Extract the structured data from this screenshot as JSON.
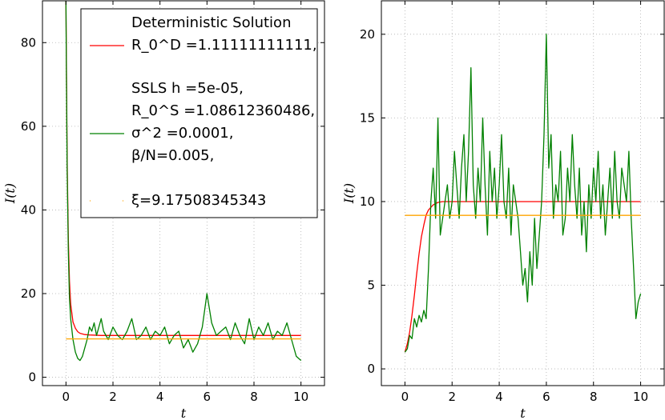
{
  "chart_data": [
    {
      "type": "line",
      "xlabel": "t",
      "ylabel": "I(t)",
      "xlim": [
        -1,
        11
      ],
      "ylim": [
        -2,
        90
      ],
      "xticks": [
        0,
        2,
        4,
        6,
        8,
        10
      ],
      "yticks": [
        0,
        20,
        40,
        60,
        80
      ],
      "grid": true,
      "legend_placement": "top-right",
      "legend": [
        {
          "series": "deterministic",
          "lines": [
            "Deterministic Solution",
            "R_0^D =1.11111111111,"
          ]
        },
        {
          "series": "ssls",
          "lines": [
            "SSLS h =5e-05,",
            "R_0^S =1.08612360486,",
            "σ^2 =0.0001,",
            "β/N=0.005,"
          ]
        },
        {
          "series": "xi",
          "lines": [
            "ξ=9.17508345343"
          ]
        }
      ],
      "series": [
        {
          "id": "deterministic",
          "color": "#ff0000",
          "x": [
            0,
            0.02,
            0.05,
            0.1,
            0.15,
            0.2,
            0.3,
            0.4,
            0.5,
            0.6,
            0.8,
            1.0,
            1.5,
            2,
            4,
            6,
            8,
            10
          ],
          "y": [
            90,
            75,
            52,
            33,
            23,
            17.5,
            13.2,
            11.7,
            10.9,
            10.5,
            10.2,
            10.1,
            10.0,
            10.0,
            10.0,
            10.0,
            10.0,
            10.0
          ]
        },
        {
          "id": "ssls",
          "color": "#008000",
          "x": [
            0,
            0.02,
            0.05,
            0.1,
            0.15,
            0.2,
            0.3,
            0.4,
            0.5,
            0.6,
            0.7,
            0.8,
            0.9,
            1.0,
            1.1,
            1.2,
            1.3,
            1.4,
            1.5,
            1.6,
            1.8,
            2.0,
            2.2,
            2.4,
            2.6,
            2.8,
            3.0,
            3.2,
            3.4,
            3.6,
            3.8,
            4.0,
            4.2,
            4.4,
            4.6,
            4.8,
            5.0,
            5.2,
            5.4,
            5.6,
            5.8,
            6.0,
            6.2,
            6.4,
            6.6,
            6.8,
            7.0,
            7.2,
            7.4,
            7.6,
            7.8,
            8.0,
            8.2,
            8.4,
            8.6,
            8.8,
            9.0,
            9.2,
            9.4,
            9.6,
            9.8,
            10.0
          ],
          "y": [
            90,
            72,
            50,
            30,
            19,
            14,
            9,
            6,
            4.5,
            4,
            5,
            7,
            9,
            12,
            11,
            13,
            10,
            12,
            14,
            11,
            9,
            12,
            10,
            9,
            11,
            14,
            9,
            10,
            12,
            9,
            11,
            10,
            12,
            8,
            10,
            11,
            7,
            9,
            6,
            8,
            12,
            20,
            13,
            10,
            11,
            12,
            9,
            13,
            10,
            8,
            14,
            9,
            12,
            10,
            13,
            9,
            11,
            10,
            13,
            9,
            5,
            4
          ]
        },
        {
          "id": "xi",
          "color": "#ffa500",
          "x": [
            0,
            10
          ],
          "y": [
            9.175,
            9.175
          ]
        }
      ]
    },
    {
      "type": "line",
      "xlabel": "t",
      "ylabel": "I(t)",
      "xlim": [
        -1,
        11
      ],
      "ylim": [
        -1,
        22
      ],
      "xticks": [
        0,
        2,
        4,
        6,
        8,
        10
      ],
      "yticks": [
        0,
        5,
        10,
        15,
        20
      ],
      "grid": true,
      "series": [
        {
          "id": "deterministic",
          "color": "#ff0000",
          "x": [
            0,
            0.1,
            0.2,
            0.3,
            0.4,
            0.5,
            0.6,
            0.7,
            0.8,
            0.9,
            1.0,
            1.2,
            1.4,
            1.6,
            2,
            4,
            6,
            8,
            10
          ],
          "y": [
            1,
            1.5,
            2.2,
            3.2,
            4.4,
            5.7,
            6.9,
            7.9,
            8.6,
            9.2,
            9.5,
            9.8,
            9.95,
            10.0,
            10.0,
            10.0,
            10.0,
            10.0,
            10.0
          ]
        },
        {
          "id": "ssls",
          "color": "#008000",
          "x": [
            0,
            0.1,
            0.2,
            0.3,
            0.4,
            0.5,
            0.6,
            0.7,
            0.8,
            0.9,
            1.0,
            1.1,
            1.2,
            1.3,
            1.4,
            1.5,
            1.6,
            1.7,
            1.8,
            1.9,
            2.0,
            2.1,
            2.2,
            2.3,
            2.4,
            2.5,
            2.6,
            2.7,
            2.8,
            2.9,
            3.0,
            3.1,
            3.2,
            3.3,
            3.4,
            3.5,
            3.6,
            3.7,
            3.8,
            3.9,
            4.0,
            4.1,
            4.2,
            4.3,
            4.4,
            4.5,
            4.6,
            4.7,
            4.8,
            4.9,
            5.0,
            5.1,
            5.2,
            5.3,
            5.4,
            5.5,
            5.6,
            5.7,
            5.8,
            5.9,
            6.0,
            6.1,
            6.2,
            6.3,
            6.4,
            6.5,
            6.6,
            6.7,
            6.8,
            6.9,
            7.0,
            7.1,
            7.2,
            7.3,
            7.4,
            7.5,
            7.6,
            7.7,
            7.8,
            7.9,
            8.0,
            8.1,
            8.2,
            8.3,
            8.4,
            8.5,
            8.6,
            8.7,
            8.8,
            8.9,
            9.0,
            9.1,
            9.2,
            9.3,
            9.4,
            9.5,
            9.6,
            9.7,
            9.8,
            9.9,
            10.0
          ],
          "y": [
            1,
            1.2,
            2,
            1.8,
            3,
            2.5,
            3.2,
            2.8,
            3.5,
            3,
            6,
            10,
            12,
            9,
            15,
            8,
            9,
            10,
            11,
            9,
            10,
            13,
            11,
            9,
            12,
            14,
            10,
            13,
            18,
            11,
            9,
            12,
            10,
            15,
            11,
            8,
            13,
            10,
            12,
            9,
            11,
            14,
            10,
            9,
            12,
            8,
            11,
            10,
            9,
            7,
            5,
            6,
            4,
            7,
            5,
            9,
            6,
            8,
            10,
            14,
            20,
            12,
            14,
            9,
            11,
            10,
            13,
            8,
            9,
            12,
            10,
            14,
            11,
            9,
            12,
            8,
            10,
            7,
            11,
            9,
            12,
            10,
            13,
            9,
            11,
            8,
            10,
            12,
            9,
            13,
            10,
            9,
            12,
            11,
            10,
            13,
            9,
            6,
            3,
            4,
            4.5
          ]
        },
        {
          "id": "xi",
          "color": "#ffa500",
          "x": [
            0,
            10
          ],
          "y": [
            9.175,
            9.175
          ]
        }
      ]
    }
  ]
}
